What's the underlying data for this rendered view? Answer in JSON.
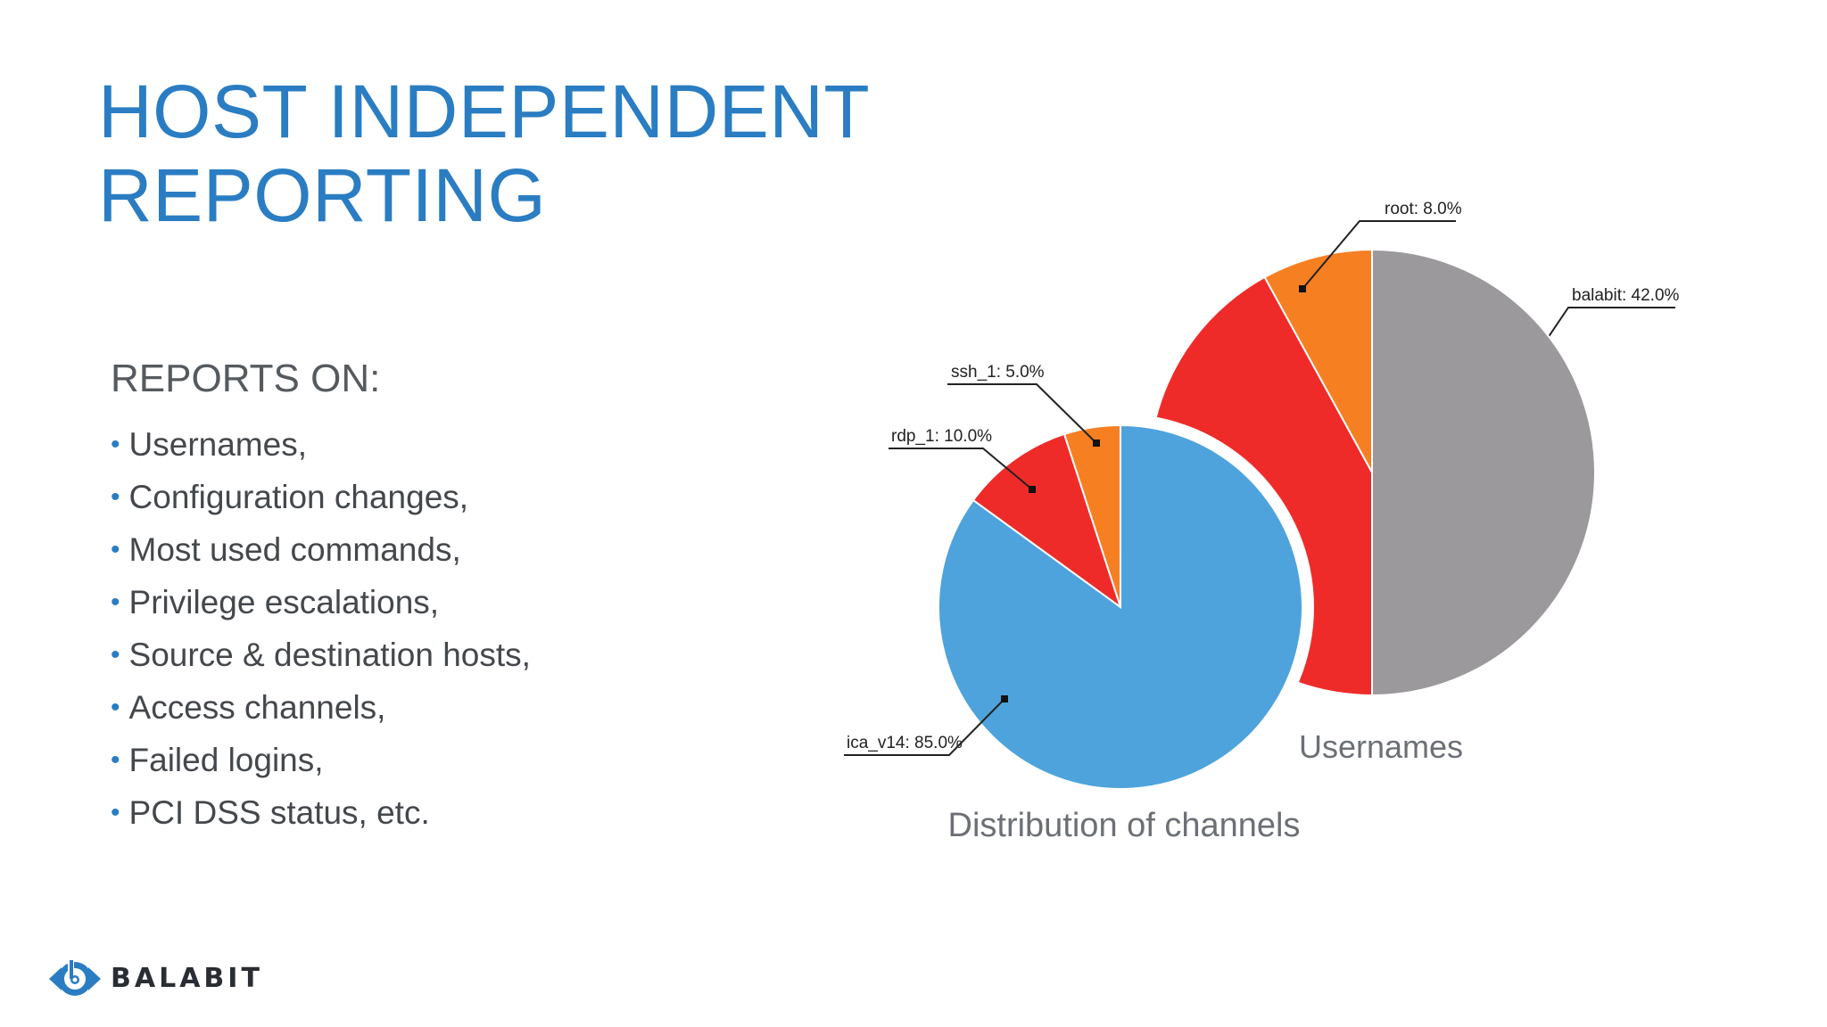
{
  "slide": {
    "title_line1": "HOST INDEPENDENT",
    "title_line2": "REPORTING",
    "reports_heading": "REPORTS ON:",
    "bullets": [
      "Usernames,",
      "Configuration changes,",
      "Most used commands,",
      "Privilege escalations,",
      "Source & destination hosts,",
      "Access channels,",
      "Failed logins,",
      "PCI DSS status, etc."
    ],
    "logo_text": "BALABIT"
  },
  "colors": {
    "title": "#2a7dc2",
    "bullet_dot": "#2a7dc2",
    "blue": "#4ea3dc",
    "red": "#ef2b2a",
    "orange": "#f67f22",
    "gray": "#9b999c"
  },
  "chart_data": [
    {
      "type": "pie",
      "title": "Usernames",
      "slices": [
        {
          "label": "root",
          "value": 8.0,
          "text": "root: 8.0%",
          "color": "#f67f22"
        },
        {
          "label": "balabit",
          "value": 42.0,
          "text": "balabit: 42.0%",
          "color": "#ef2b2a"
        },
        {
          "label": "",
          "value": 50.0,
          "text": "",
          "color": "#9b999c"
        }
      ]
    },
    {
      "type": "pie",
      "title": "Distribution of channels",
      "slices": [
        {
          "label": "ssh_1",
          "value": 5.0,
          "text": "ssh_1: 5.0%",
          "color": "#f67f22"
        },
        {
          "label": "rdp_1",
          "value": 10.0,
          "text": "rdp_1: 10.0%",
          "color": "#ef2b2a"
        },
        {
          "label": "ica_v14",
          "value": 85.0,
          "text": "ica_v14: 85.0%",
          "color": "#4ea3dc"
        }
      ]
    }
  ]
}
